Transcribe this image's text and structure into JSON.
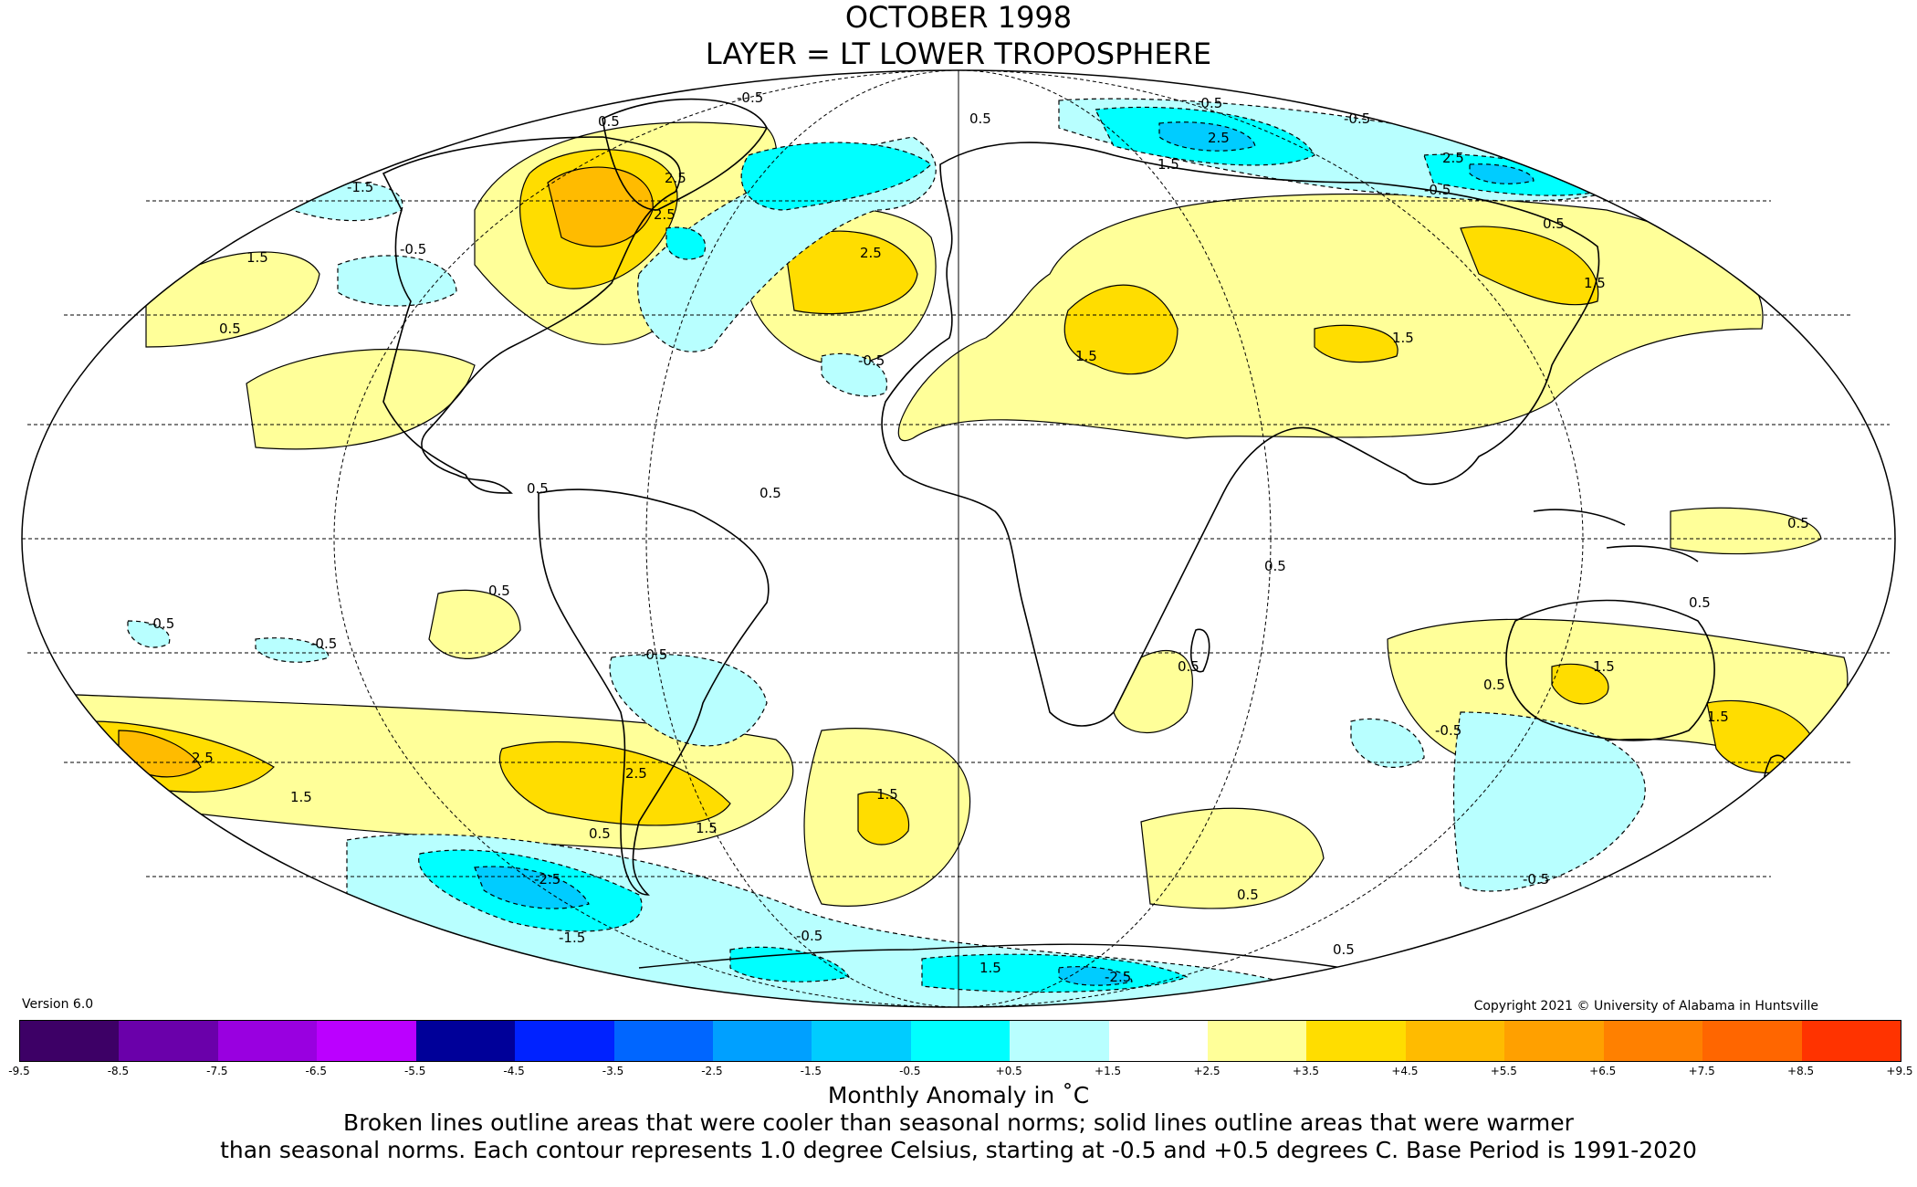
{
  "title": {
    "line1": "OCTOBER 1998",
    "line2": "LAYER = LT LOWER TROPOSPHERE"
  },
  "version_label": "Version 6.0",
  "copyright": "Copyright 2021 © University of Alabama in Huntsville",
  "colorbar": {
    "ticks": [
      "-9.5",
      "-8.5",
      "-7.5",
      "-6.5",
      "-5.5",
      "-4.5",
      "-3.5",
      "-2.5",
      "-1.5",
      "-0.5",
      "+0.5",
      "+1.5",
      "+2.5",
      "+3.5",
      "+4.5",
      "+5.5",
      "+6.5",
      "+7.5",
      "+8.5",
      "+9.5"
    ],
    "colors": [
      "#3d0066",
      "#6a00aa",
      "#9900e0",
      "#bb00ff",
      "#000099",
      "#0022ff",
      "#0066ff",
      "#00a0ff",
      "#00ccff",
      "#00ffff",
      "#b8ffff",
      "#ffffff",
      "#ffff99",
      "#ffdd00",
      "#ffbb00",
      "#ffa000",
      "#ff8000",
      "#ff6600",
      "#ff3300",
      "#e00000",
      "#b80000"
    ]
  },
  "units_label": "Monthly Anomaly in ˚C",
  "note_line1": "Broken lines outline areas that were cooler than seasonal norms; solid lines outline areas that were warmer",
  "note_line2": "than seasonal norms. Each contour represents 1.0 degree Celsius, starting at -0.5 and +0.5 degrees C. Base Period is 1991-2020",
  "contour_labels": {
    "l_p05": "0.5",
    "l_m05": "-0.5",
    "l_p15": "1.5",
    "l_m15": "-1.5",
    "l_p25": "2.5",
    "l_m25": "-2.5"
  },
  "colors": {
    "warm_05": "#ffff99",
    "warm_15": "#ffdd00",
    "warm_25": "#ffbb00",
    "cool_05": "#b8ffff",
    "cool_15": "#00ffff",
    "cool_25": "#00ccff"
  }
}
